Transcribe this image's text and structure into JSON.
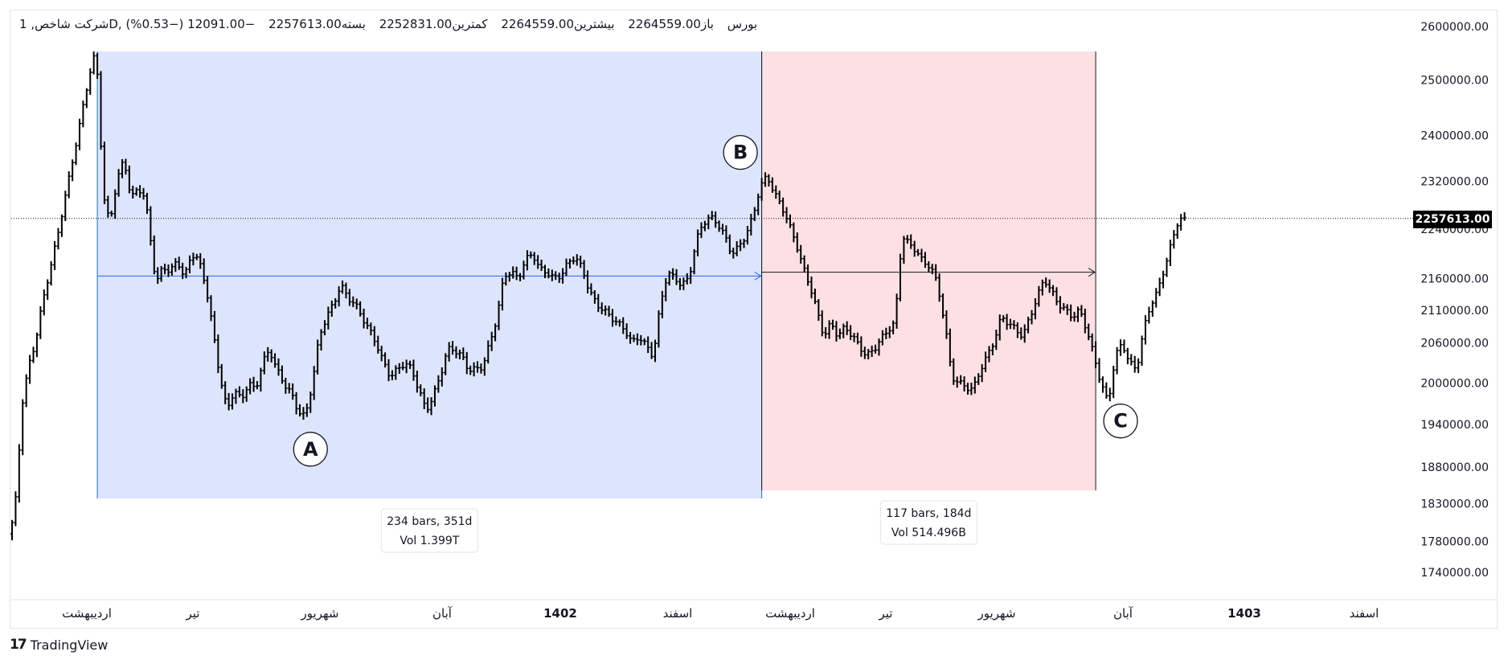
{
  "header": {
    "symbol": "شرکت شاخص, 1D, بورس",
    "open_label": "باز",
    "open_value": "2264559.00",
    "high_label": "بیشترین",
    "high_value": "2264559.00",
    "low_label": "کمترین",
    "low_value": "2252831.00",
    "close_label": "بسته",
    "close_value": "2257613.00",
    "change": "−12091.00 (−0.53%)"
  },
  "branding": {
    "name": "TradingView"
  },
  "last_price_label": "2257613.00",
  "colors": {
    "range_a_fill": "#dde5fc",
    "range_b_fill": "#fde0e3",
    "range_a_line": "#2962ff",
    "range_b_line": "#131722",
    "bar": "#000000"
  },
  "chart_data": {
    "type": "ohlc",
    "title": "",
    "y_axis": {
      "position": "right",
      "scale": "log",
      "ylim": [
        1700000,
        2630000
      ],
      "ticks": [
        2600000,
        2500000,
        2400000,
        2320000,
        2240000,
        2160000,
        2110000,
        2060000,
        2000000,
        1940000,
        1880000,
        1830000,
        1780000,
        1740000
      ],
      "tick_labels": [
        "2600000.00",
        "2500000.00",
        "2400000.00",
        "2320000.00",
        "2240000.00",
        "2160000.00",
        "2110000.00",
        "2060000.00",
        "2000000.00",
        "1940000.00",
        "1880000.00",
        "1830000.00",
        "1780000.00",
        "1740000.00"
      ]
    },
    "x_axis": {
      "ticks": [
        {
          "label": "اردیبهشت",
          "bold": false
        },
        {
          "label": "تیر",
          "bold": false
        },
        {
          "label": "شهریور",
          "bold": false
        },
        {
          "label": "آبان",
          "bold": false
        },
        {
          "label": "1402",
          "bold": true
        },
        {
          "label": "اسفند",
          "bold": false
        },
        {
          "label": "اردیبهشت",
          "bold": false
        },
        {
          "label": "تیر",
          "bold": false
        },
        {
          "label": "شهریور",
          "bold": false
        },
        {
          "label": "آبان",
          "bold": false
        },
        {
          "label": "1403",
          "bold": true
        },
        {
          "label": "اسفند",
          "bold": false
        }
      ]
    },
    "price_path": [
      [
        0,
        1790000
      ],
      [
        2,
        1850000
      ],
      [
        3,
        1960000
      ],
      [
        5,
        2020000
      ],
      [
        7,
        2060000
      ],
      [
        9,
        2120000
      ],
      [
        11,
        2170000
      ],
      [
        13,
        2220000
      ],
      [
        15,
        2280000
      ],
      [
        17,
        2340000
      ],
      [
        19,
        2400000
      ],
      [
        21,
        2470000
      ],
      [
        23,
        2530000
      ],
      [
        24,
        2550000
      ],
      [
        25,
        2470000
      ],
      [
        26,
        2300000
      ],
      [
        28,
        2250000
      ],
      [
        30,
        2320000
      ],
      [
        32,
        2360000
      ],
      [
        34,
        2290000
      ],
      [
        36,
        2310000
      ],
      [
        38,
        2290000
      ],
      [
        40,
        2200000
      ],
      [
        41,
        2150000
      ],
      [
        43,
        2180000
      ],
      [
        45,
        2170000
      ],
      [
        47,
        2190000
      ],
      [
        49,
        2160000
      ],
      [
        51,
        2200000
      ],
      [
        53,
        2190000
      ],
      [
        55,
        2150000
      ],
      [
        57,
        2080000
      ],
      [
        59,
        2010000
      ],
      [
        61,
        1960000
      ],
      [
        63,
        1990000
      ],
      [
        65,
        1975000
      ],
      [
        67,
        2000000
      ],
      [
        69,
        1990000
      ],
      [
        71,
        2030000
      ],
      [
        73,
        2050000
      ],
      [
        75,
        2020000
      ],
      [
        77,
        2000000
      ],
      [
        79,
        1985000
      ],
      [
        81,
        1960000
      ],
      [
        83,
        1950000
      ],
      [
        85,
        2000000
      ],
      [
        87,
        2070000
      ],
      [
        89,
        2100000
      ],
      [
        91,
        2120000
      ],
      [
        93,
        2150000
      ],
      [
        95,
        2130000
      ],
      [
        97,
        2120000
      ],
      [
        99,
        2100000
      ],
      [
        101,
        2080000
      ],
      [
        103,
        2060000
      ],
      [
        105,
        2030000
      ],
      [
        107,
        2010000
      ],
      [
        109,
        2020000
      ],
      [
        111,
        2030000
      ],
      [
        113,
        2020000
      ],
      [
        115,
        1990000
      ],
      [
        117,
        1960000
      ],
      [
        119,
        1980000
      ],
      [
        121,
        2010000
      ],
      [
        123,
        2050000
      ],
      [
        125,
        2050000
      ],
      [
        127,
        2040000
      ],
      [
        129,
        2020000
      ],
      [
        131,
        2020000
      ],
      [
        133,
        2025000
      ],
      [
        135,
        2060000
      ],
      [
        137,
        2100000
      ],
      [
        139,
        2165000
      ],
      [
        141,
        2170000
      ],
      [
        143,
        2160000
      ],
      [
        145,
        2190000
      ],
      [
        147,
        2200000
      ],
      [
        149,
        2175000
      ],
      [
        151,
        2170000
      ],
      [
        153,
        2160000
      ],
      [
        155,
        2165000
      ],
      [
        157,
        2185000
      ],
      [
        159,
        2195000
      ],
      [
        161,
        2175000
      ],
      [
        163,
        2140000
      ],
      [
        165,
        2120000
      ],
      [
        167,
        2110000
      ],
      [
        169,
        2100000
      ],
      [
        171,
        2090000
      ],
      [
        173,
        2080000
      ],
      [
        175,
        2060000
      ],
      [
        177,
        2070000
      ],
      [
        179,
        2055000
      ],
      [
        181,
        2040000
      ],
      [
        183,
        2120000
      ],
      [
        185,
        2170000
      ],
      [
        187,
        2160000
      ],
      [
        189,
        2150000
      ],
      [
        191,
        2160000
      ],
      [
        193,
        2220000
      ],
      [
        195,
        2250000
      ],
      [
        197,
        2260000
      ],
      [
        199,
        2250000
      ],
      [
        201,
        2230000
      ],
      [
        203,
        2200000
      ],
      [
        205,
        2210000
      ],
      [
        207,
        2230000
      ],
      [
        209,
        2260000
      ],
      [
        211,
        2310000
      ],
      [
        213,
        2330000
      ],
      [
        215,
        2300000
      ],
      [
        217,
        2280000
      ],
      [
        219,
        2250000
      ],
      [
        221,
        2220000
      ],
      [
        223,
        2180000
      ],
      [
        225,
        2150000
      ],
      [
        227,
        2110000
      ],
      [
        229,
        2070000
      ],
      [
        231,
        2090000
      ],
      [
        233,
        2070000
      ],
      [
        235,
        2085000
      ],
      [
        237,
        2070000
      ],
      [
        239,
        2055000
      ],
      [
        241,
        2040000
      ],
      [
        243,
        2050000
      ],
      [
        245,
        2065000
      ],
      [
        247,
        2080000
      ],
      [
        249,
        2090000
      ],
      [
        251,
        2230000
      ],
      [
        253,
        2215000
      ],
      [
        255,
        2205000
      ],
      [
        257,
        2185000
      ],
      [
        259,
        2180000
      ],
      [
        261,
        2150000
      ],
      [
        263,
        2090000
      ],
      [
        265,
        2010000
      ],
      [
        267,
        2000000
      ],
      [
        269,
        1995000
      ],
      [
        271,
        1990000
      ],
      [
        273,
        2020000
      ],
      [
        275,
        2040000
      ],
      [
        277,
        2065000
      ],
      [
        279,
        2100000
      ],
      [
        281,
        2090000
      ],
      [
        283,
        2080000
      ],
      [
        285,
        2070000
      ],
      [
        287,
        2100000
      ],
      [
        289,
        2130000
      ],
      [
        291,
        2160000
      ],
      [
        293,
        2140000
      ],
      [
        295,
        2120000
      ],
      [
        297,
        2110000
      ],
      [
        299,
        2100000
      ],
      [
        301,
        2110000
      ],
      [
        303,
        2080000
      ],
      [
        305,
        2040000
      ],
      [
        307,
        2000000
      ],
      [
        309,
        1970000
      ],
      [
        311,
        2040000
      ],
      [
        313,
        2060000
      ],
      [
        315,
        2030000
      ],
      [
        317,
        2020000
      ],
      [
        319,
        2080000
      ],
      [
        321,
        2120000
      ],
      [
        323,
        2140000
      ],
      [
        325,
        2180000
      ],
      [
        327,
        2220000
      ],
      [
        329,
        2260000
      ],
      [
        330,
        2255000
      ]
    ],
    "ranges": [
      {
        "label": "A",
        "start_bar": 24,
        "end_bar": 211,
        "start_price": 2164000,
        "end_price": 2164000,
        "info_line1": "234 bars, 351d",
        "info_line2": "Vol 1.399T"
      },
      {
        "label": "B",
        "start_bar": 211,
        "end_bar": 305,
        "start_price": 2170000,
        "end_price": 2170000,
        "info_line1": "117 bars, 184d",
        "info_line2": "Vol 514.496B"
      }
    ],
    "points": [
      {
        "label": "A",
        "bar": 84,
        "price": 1905000
      },
      {
        "label": "B",
        "bar": 205,
        "price": 2370000
      },
      {
        "label": "C",
        "bar": 312,
        "price": 1945000
      }
    ],
    "last_price": 2257613
  }
}
